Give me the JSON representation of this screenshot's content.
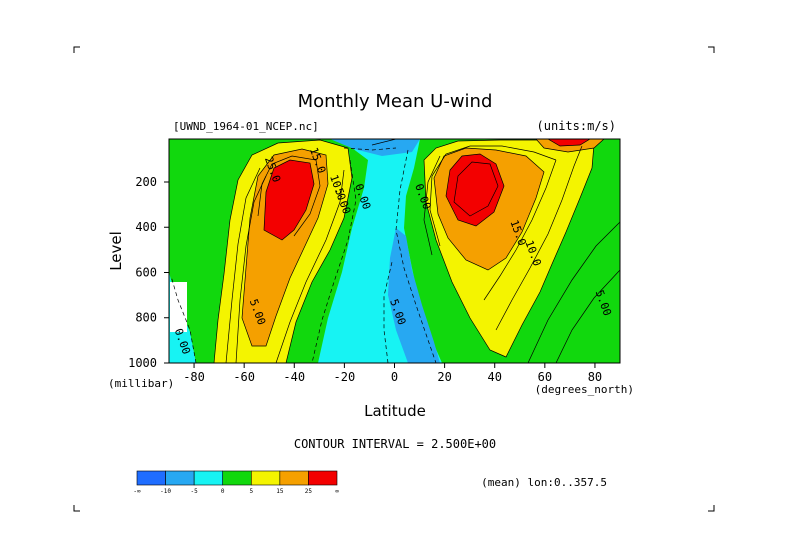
{
  "chart_data": {
    "type": "contour",
    "title": "Monthly Mean U-wind",
    "dataset_label": "[UWND_1964-01_NCEP.nc]",
    "units_label": "(units:m/s)",
    "xlabel": "Latitude",
    "x_units": "(degrees_north)",
    "ylabel": "Level",
    "y_units": "(millibar)",
    "xlim": [
      -90,
      90
    ],
    "ylim": [
      1000,
      10
    ],
    "y_reversed": true,
    "x_ticks": [
      -80,
      -60,
      -40,
      -20,
      0,
      20,
      40,
      60,
      80
    ],
    "y_ticks": [
      200,
      400,
      600,
      800,
      1000
    ],
    "contour_interval_text": "CONTOUR INTERVAL = 2.500E+00",
    "averaging_text": "(mean) lon:0..357.5",
    "jets": [
      {
        "lat": -45,
        "level": 250,
        "max_value": 30
      },
      {
        "lat": 30,
        "level": 200,
        "max_value": 35
      },
      {
        "lat": 70,
        "level": 30,
        "max_value": 30
      }
    ],
    "contour_labels": [
      {
        "text": "25.0",
        "lat": -50,
        "level": 150
      },
      {
        "text": "15.0",
        "lat": -32,
        "level": 110
      },
      {
        "text": "10.0",
        "lat": -24,
        "level": 230
      },
      {
        "text": "5.00",
        "lat": -22,
        "level": 290
      },
      {
        "text": "0.00",
        "lat": -14,
        "level": 270
      },
      {
        "text": "0.00",
        "lat": 10,
        "level": 270
      },
      {
        "text": "15.0",
        "lat": 48,
        "level": 430
      },
      {
        "text": "10.0",
        "lat": 54,
        "level": 520
      },
      {
        "text": "5.00",
        "lat": 82,
        "level": 740
      },
      {
        "text": "5.00",
        "lat": -56,
        "level": 780
      },
      {
        "text": "0.00",
        "lat": -86,
        "level": 910
      },
      {
        "text": "5.00",
        "lat": 0,
        "level": 780
      }
    ],
    "colorbar": {
      "colors": [
        "#1f6dff",
        "#27a8f2",
        "#17f3f3",
        "#11d80d",
        "#f4f400",
        "#f5a000",
        "#f30000"
      ],
      "labels": [
        "-∞",
        "-10",
        "-5",
        "0",
        "5",
        "15",
        "25",
        "∞"
      ]
    }
  }
}
